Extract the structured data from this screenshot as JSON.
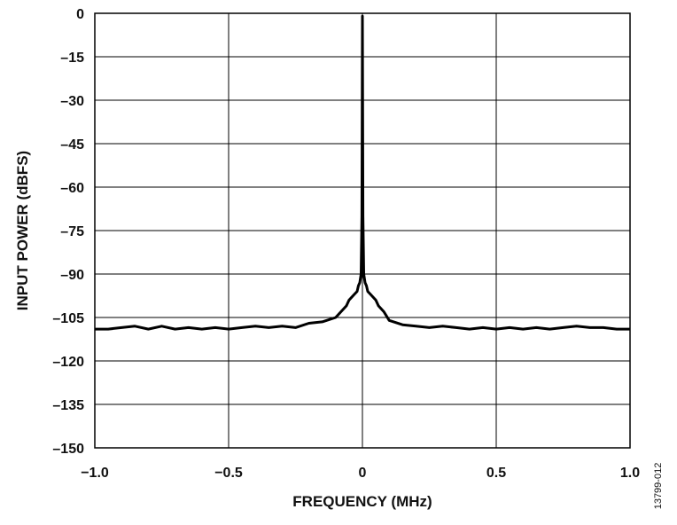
{
  "chart_data": {
    "type": "line",
    "title": "",
    "xlabel": "FREQUENCY (MHz)",
    "ylabel": "INPUT POWER (dBFS)",
    "xlim": [
      -1.0,
      1.0
    ],
    "ylim": [
      -150,
      0
    ],
    "grid": true,
    "x_ticks": [
      -1.0,
      -0.5,
      0,
      0.5,
      1.0
    ],
    "x_tick_labels": [
      "−1.0",
      "−0.5",
      "0",
      "0.5",
      "1.0"
    ],
    "y_ticks": [
      0,
      -15,
      -30,
      -45,
      -60,
      -75,
      -90,
      -105,
      -120,
      -135,
      -150
    ],
    "y_tick_labels": [
      "0",
      "–15",
      "–30",
      "–45",
      "–60",
      "–75",
      "–90",
      "–105",
      "–120",
      "–135",
      "–150"
    ],
    "series": [
      {
        "color": "#000000",
        "x": [
          -1.0,
          -0.95,
          -0.9,
          -0.85,
          -0.8,
          -0.75,
          -0.7,
          -0.65,
          -0.6,
          -0.55,
          -0.5,
          -0.45,
          -0.4,
          -0.35,
          -0.3,
          -0.25,
          -0.2,
          -0.15,
          -0.1,
          -0.08,
          -0.06,
          -0.05,
          -0.04,
          -0.03,
          -0.02,
          -0.015,
          -0.01,
          -0.005,
          -0.002,
          0,
          0.002,
          0.005,
          0.01,
          0.015,
          0.02,
          0.03,
          0.04,
          0.05,
          0.06,
          0.08,
          0.1,
          0.15,
          0.2,
          0.25,
          0.3,
          0.35,
          0.4,
          0.45,
          0.5,
          0.55,
          0.6,
          0.65,
          0.7,
          0.75,
          0.8,
          0.85,
          0.9,
          0.95,
          1.0
        ],
        "y": [
          -109,
          -109,
          -108.5,
          -108,
          -109,
          -108,
          -109,
          -108.5,
          -109,
          -108.5,
          -109,
          -108.5,
          -108,
          -108.5,
          -108,
          -108.5,
          -107,
          -106.5,
          -105,
          -103,
          -101,
          -99,
          -98,
          -97,
          -96,
          -94,
          -93,
          -90,
          -70,
          -1,
          -70,
          -90,
          -93,
          -94,
          -96,
          -97,
          -98,
          -99,
          -101,
          -103,
          -106,
          -107.5,
          -108,
          -108.5,
          -108,
          -108.5,
          -109,
          -108.5,
          -109,
          -108.5,
          -109,
          -108.5,
          -109,
          -108.5,
          -108,
          -108.5,
          -108.5,
          -109,
          -109
        ]
      }
    ]
  },
  "figure_id": "13799-012"
}
